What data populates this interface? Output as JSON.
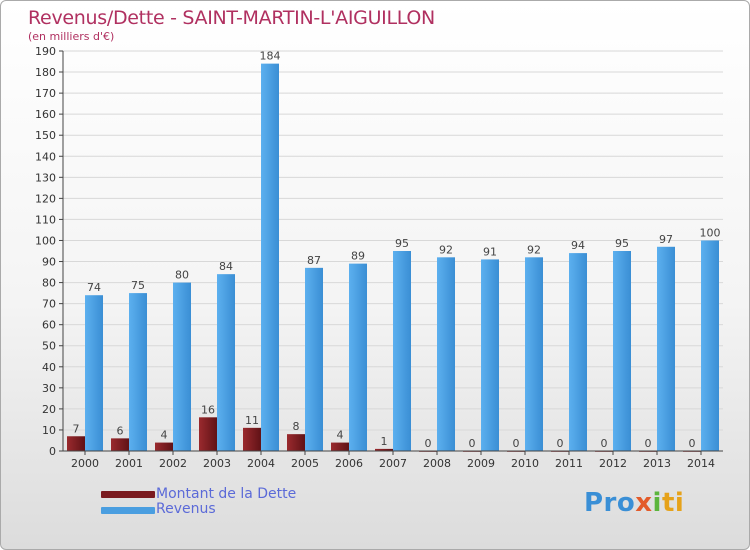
{
  "title": "Revenus/Dette - SAINT-MARTIN-L'AIGUILLON",
  "subtitle": "(en milliers d'€)",
  "colors": {
    "debt": "#7a1a1e",
    "revenue": "#4a9ee0",
    "title": "#b03060",
    "legend_text": "#5b6ad8"
  },
  "chart_data": {
    "type": "bar",
    "categories": [
      "2000",
      "2001",
      "2002",
      "2003",
      "2004",
      "2005",
      "2006",
      "2007",
      "2008",
      "2009",
      "2010",
      "2011",
      "2012",
      "2013",
      "2014"
    ],
    "series": [
      {
        "name": "Montant de la Dette",
        "values": [
          7,
          6,
          4,
          16,
          11,
          8,
          4,
          1,
          0,
          0,
          0,
          0,
          0,
          0,
          0
        ]
      },
      {
        "name": "Revenus",
        "values": [
          74,
          75,
          80,
          84,
          184,
          87,
          89,
          95,
          92,
          91,
          92,
          94,
          95,
          97,
          100
        ]
      }
    ],
    "ylim": [
      0,
      190
    ],
    "yticks": [
      0,
      10,
      20,
      30,
      40,
      50,
      60,
      70,
      80,
      90,
      100,
      110,
      120,
      130,
      140,
      150,
      160,
      170,
      180,
      190
    ],
    "grid": true,
    "legend_position": "bottom-left"
  },
  "legend": [
    {
      "label": "Montant de la Dette",
      "color": "#7a1a1e"
    },
    {
      "label": "Revenus",
      "color": "#4a9ee0"
    }
  ],
  "logo": {
    "p1": "Pro",
    "p2": "x",
    "p3": "i",
    "p4": "ti"
  }
}
